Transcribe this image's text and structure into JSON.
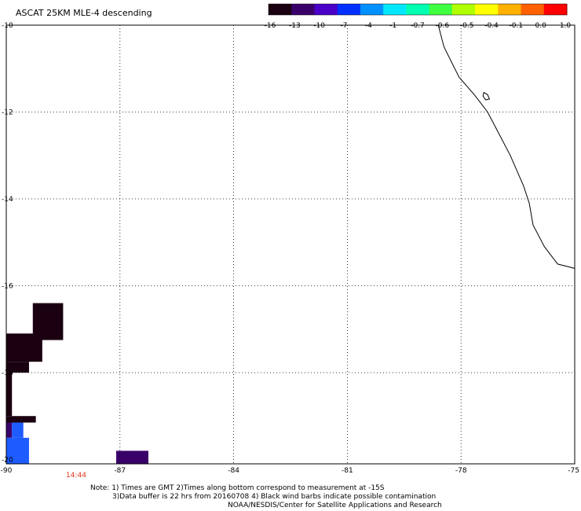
{
  "title": "ASCAT 25KM MLE-4 descending",
  "colorbar": {
    "colors": [
      "#1a0010",
      "#3a006a",
      "#4a00c8",
      "#0030ff",
      "#0090ff",
      "#00e8ff",
      "#00ffb0",
      "#40ff40",
      "#b0ff00",
      "#ffff00",
      "#ffb000",
      "#ff6000",
      "#ff0000"
    ],
    "labels": [
      "-16",
      "-13",
      "-10",
      "-7",
      "-4",
      "-1",
      "-0.7",
      "-0.6",
      "-0.5",
      "-0.4",
      "-0.1",
      "0.0",
      "1.0"
    ]
  },
  "map": {
    "lat_labels": [
      "-10",
      "-12",
      "-14",
      "-16",
      "-18",
      "-20"
    ],
    "lon_labels": [
      "-90",
      "-87",
      "-84",
      "-81",
      "-78",
      "-75"
    ],
    "lat_values": [
      -10,
      -12,
      -14,
      -16,
      -18,
      -20
    ],
    "lon_values": [
      -90,
      -87,
      -84,
      -81,
      -78,
      -75
    ],
    "coastline": [
      [
        -78.6,
        -10.0
      ],
      [
        -78.45,
        -10.5
      ],
      [
        -78.25,
        -10.85
      ],
      [
        -78.05,
        -11.2
      ],
      [
        -77.65,
        -11.6
      ],
      [
        -77.3,
        -12.0
      ],
      [
        -77.0,
        -12.5
      ],
      [
        -76.7,
        -13.0
      ],
      [
        -76.35,
        -13.7
      ],
      [
        -76.2,
        -14.1
      ],
      [
        -76.1,
        -14.6
      ],
      [
        -75.8,
        -15.1
      ],
      [
        -75.45,
        -15.5
      ],
      [
        -75.0,
        -15.6
      ]
    ],
    "island": [
      [
        -77.4,
        -11.55
      ],
      [
        -77.3,
        -11.6
      ],
      [
        -77.25,
        -11.7
      ],
      [
        -77.35,
        -11.72
      ],
      [
        -77.42,
        -11.63
      ]
    ],
    "cells": [
      {
        "lon0": -89.3,
        "lon1": -88.5,
        "lat0": -16.4,
        "lat1": -17.25,
        "color": "#1a0010"
      },
      {
        "lon0": -90.0,
        "lon1": -89.05,
        "lat0": -17.1,
        "lat1": -17.75,
        "color": "#1a0010"
      },
      {
        "lon0": -90.0,
        "lon1": -89.4,
        "lat0": -17.75,
        "lat1": -18.0,
        "color": "#1a0010"
      },
      {
        "lon0": -90.0,
        "lon1": -89.85,
        "lat0": -18.0,
        "lat1": -19.0,
        "color": "#1a0010"
      },
      {
        "lon0": -90.0,
        "lon1": -89.22,
        "lat0": -19.0,
        "lat1": -19.15,
        "color": "#1a0010"
      },
      {
        "lon0": -90.0,
        "lon1": -89.85,
        "lat0": -19.15,
        "lat1": -19.5,
        "color": "#3a006a"
      },
      {
        "lon0": -89.85,
        "lon1": -89.55,
        "lat0": -19.15,
        "lat1": -19.5,
        "color": "#1e5cff"
      },
      {
        "lon0": -90.0,
        "lon1": -89.4,
        "lat0": -19.5,
        "lat1": -20.3,
        "color": "#1e5cff"
      },
      {
        "lon0": -87.1,
        "lon1": -86.25,
        "lat0": -19.8,
        "lat1": -20.1,
        "color": "#3a006a"
      }
    ]
  },
  "time_label": "14:44",
  "notes": {
    "line1": "Note: 1) Times are GMT 2)Times along bottom correspond to measurement at -15S",
    "line2": "3)Data buffer is 22 hrs from 20160708 4) Black wind barbs indicate possible contamination",
    "line3": "NOAA/NESDIS/Center for Satellite Applications and Research"
  }
}
